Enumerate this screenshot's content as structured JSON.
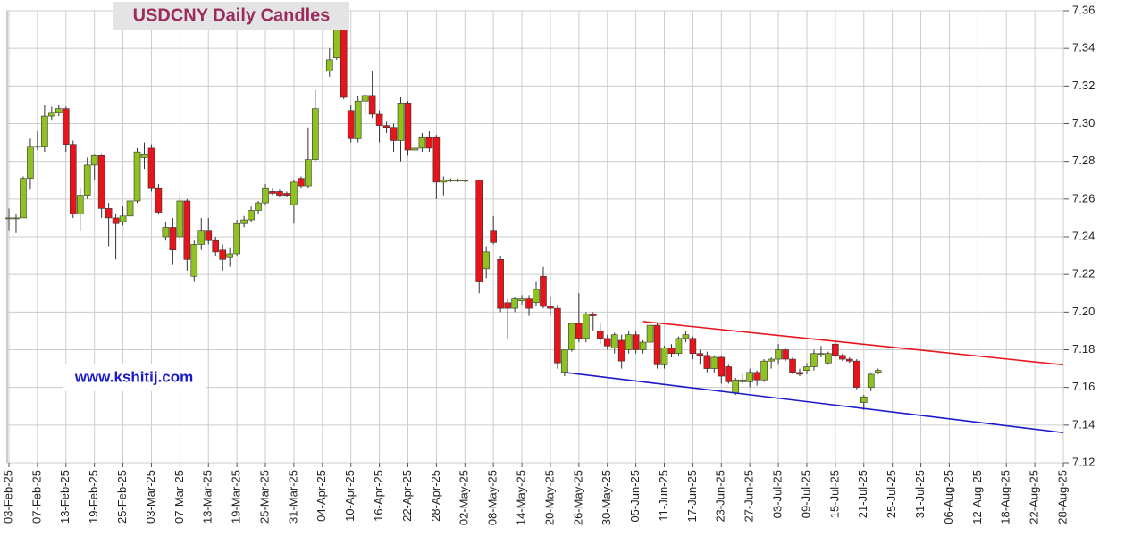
{
  "chart_data": {
    "type": "candlestick",
    "title": "USDCNY Daily Candles",
    "watermark": "www.kshitij.com",
    "up_color": "#8dc21f",
    "down_color": "#e8141b",
    "grid": true,
    "xlim": [
      0,
      148
    ],
    "xticks": [
      {
        "value": 0,
        "label": "03-Feb-25"
      },
      {
        "value": 4,
        "label": "07-Feb-25"
      },
      {
        "value": 8,
        "label": "13-Feb-25"
      },
      {
        "value": 12,
        "label": "19-Feb-25"
      },
      {
        "value": 16,
        "label": "25-Feb-25"
      },
      {
        "value": 20,
        "label": "03-Mar-25"
      },
      {
        "value": 24,
        "label": "07-Mar-25"
      },
      {
        "value": 28,
        "label": "13-Mar-25"
      },
      {
        "value": 32,
        "label": "19-Mar-25"
      },
      {
        "value": 36,
        "label": "25-Mar-25"
      },
      {
        "value": 40,
        "label": "31-Mar-25"
      },
      {
        "value": 44,
        "label": "04-Apr-25"
      },
      {
        "value": 48,
        "label": "10-Apr-25"
      },
      {
        "value": 52,
        "label": "16-Apr-25"
      },
      {
        "value": 56,
        "label": "22-Apr-25"
      },
      {
        "value": 60,
        "label": "28-Apr-25"
      },
      {
        "value": 64,
        "label": "02-May-25"
      },
      {
        "value": 68,
        "label": "08-May-25"
      },
      {
        "value": 72,
        "label": "14-May-25"
      },
      {
        "value": 76,
        "label": "20-May-25"
      },
      {
        "value": 80,
        "label": "26-May-25"
      },
      {
        "value": 84,
        "label": "30-May-25"
      },
      {
        "value": 88,
        "label": "05-Jun-25"
      },
      {
        "value": 92,
        "label": "11-Jun-25"
      },
      {
        "value": 96,
        "label": "17-Jun-25"
      },
      {
        "value": 100,
        "label": "23-Jun-25"
      },
      {
        "value": 104,
        "label": "27-Jun-25"
      },
      {
        "value": 108,
        "label": "03-Jul-25"
      },
      {
        "value": 112,
        "label": "09-Jul-25"
      },
      {
        "value": 116,
        "label": "15-Jul-25"
      },
      {
        "value": 120,
        "label": "21-Jul-25"
      },
      {
        "value": 124,
        "label": "25-Jul-25"
      },
      {
        "value": 128,
        "label": "31-Jul-25"
      },
      {
        "value": 132,
        "label": "06-Aug-25"
      },
      {
        "value": 136,
        "label": "12-Aug-25"
      },
      {
        "value": 140,
        "label": "18-Aug-25"
      },
      {
        "value": 144,
        "label": "22-Aug-25"
      },
      {
        "value": 148,
        "label": "28-Aug-25"
      }
    ],
    "ylim": [
      7.12,
      7.36
    ],
    "yticks": [
      7.12,
      7.14,
      7.16,
      7.18,
      {
        "value": 7.2,
        "label": "7.20"
      },
      7.22,
      7.24,
      7.26,
      7.28,
      {
        "value": 7.3,
        "label": "7.30"
      },
      7.32,
      7.34,
      7.36
    ],
    "x": [
      0,
      1,
      2,
      3,
      4,
      5,
      6,
      7,
      8,
      9,
      10,
      11,
      12,
      13,
      14,
      15,
      16,
      17,
      18,
      19,
      20,
      21,
      22,
      23,
      24,
      25,
      26,
      27,
      28,
      29,
      30,
      31,
      32,
      33,
      34,
      35,
      36,
      37,
      38,
      39,
      40,
      41,
      42,
      43,
      44,
      45,
      46,
      47,
      48,
      49,
      50,
      51,
      52,
      53,
      54,
      55,
      56,
      57,
      58,
      59,
      60,
      61,
      62,
      63,
      64,
      65,
      66,
      67,
      68,
      69,
      70,
      71,
      72,
      73,
      74,
      75,
      76,
      77,
      78,
      79,
      80,
      81,
      82,
      83,
      84,
      85,
      86,
      87,
      88,
      89,
      90,
      91,
      92,
      93,
      94,
      95,
      96,
      97,
      98,
      99,
      100,
      101,
      102,
      103,
      104,
      105,
      106,
      107,
      108,
      109,
      110,
      111,
      112,
      113,
      114,
      115,
      116,
      117,
      118,
      119,
      120,
      121,
      122
    ],
    "open": [
      7.25,
      7.25,
      7.25,
      7.271,
      7.288,
      7.288,
      7.304,
      7.306,
      7.308,
      7.289,
      7.252,
      7.262,
      7.278,
      7.283,
      7.255,
      7.25,
      7.248,
      7.251,
      7.259,
      7.282,
      7.287,
      7.266,
      7.24,
      7.245,
      7.24,
      7.259,
      7.219,
      7.236,
      7.243,
      7.238,
      7.233,
      7.229,
      7.231,
      7.247,
      7.249,
      7.254,
      7.258,
      7.264,
      7.264,
      7.263,
      7.257,
      7.271,
      7.267,
      7.281,
      null,
      7.328,
      7.335,
      7.35,
      7.307,
      7.292,
      7.312,
      7.315,
      7.305,
      7.299,
      7.298,
      7.291,
      7.311,
      7.286,
      7.287,
      7.293,
      7.293,
      7.269,
      7.27,
      7.27,
      7.27,
      null,
      7.27,
      7.223,
      7.243,
      7.228,
      7.205,
      7.202,
      7.206,
      7.207,
      7.205,
      7.219,
      7.203,
      7.202,
      7.168,
      7.18,
      7.194,
      7.186,
      7.199,
      7.19,
      7.186,
      7.181,
      7.185,
      7.18,
      7.188,
      7.18,
      7.184,
      7.193,
      7.172,
      7.181,
      7.178,
      7.186,
      7.186,
      7.178,
      7.177,
      7.17,
      7.176,
      7.171,
      7.157,
      7.163,
      7.163,
      7.168,
      7.164,
      7.174,
      7.175,
      7.18,
      7.175,
      7.168,
      7.169,
      7.171,
      7.178,
      7.173,
      7.183,
      7.177,
      7.175,
      7.174,
      7.152,
      7.16,
      7.168
    ],
    "high": [
      7.255,
      7.252,
      7.272,
      7.292,
      7.296,
      7.31,
      7.309,
      7.31,
      7.309,
      7.291,
      7.266,
      7.282,
      7.284,
      7.284,
      7.258,
      7.252,
      7.256,
      7.262,
      7.287,
      7.29,
      7.289,
      7.268,
      7.248,
      7.25,
      7.262,
      7.26,
      7.238,
      7.25,
      7.25,
      7.24,
      7.236,
      7.234,
      7.249,
      7.251,
      7.256,
      7.259,
      7.268,
      7.266,
      7.265,
      7.264,
      7.27,
      7.272,
      7.298,
      7.318,
      null,
      7.34,
      7.35,
      7.35,
      7.31,
      7.315,
      7.316,
      7.328,
      7.307,
      7.301,
      7.3,
      7.314,
      7.312,
      7.289,
      7.295,
      7.296,
      7.294,
      7.272,
      7.271,
      7.271,
      7.27,
      null,
      7.27,
      7.235,
      7.251,
      7.23,
      7.207,
      7.208,
      7.209,
      7.209,
      7.216,
      7.224,
      7.208,
      7.204,
      7.18,
      7.194,
      7.21,
      7.2,
      7.2,
      7.194,
      7.188,
      7.189,
      7.188,
      7.19,
      7.19,
      7.185,
      7.195,
      7.194,
      7.182,
      7.183,
      7.187,
      7.19,
      7.187,
      7.18,
      7.179,
      7.177,
      7.177,
      7.172,
      7.165,
      7.167,
      7.17,
      7.169,
      7.175,
      7.176,
      7.183,
      7.181,
      7.176,
      7.17,
      7.173,
      7.18,
      7.182,
      7.179,
      7.184,
      7.178,
      7.176,
      7.175,
      7.156,
      7.168,
      7.17
    ],
    "low": [
      7.243,
      7.242,
      7.25,
      7.265,
      7.286,
      7.285,
      7.302,
      7.304,
      7.285,
      7.25,
      7.243,
      7.26,
      7.27,
      7.25,
      7.235,
      7.228,
      7.246,
      7.25,
      7.258,
      7.276,
      7.264,
      7.252,
      7.238,
      7.225,
      7.238,
      7.222,
      7.216,
      7.233,
      7.236,
      7.23,
      7.222,
      7.224,
      7.23,
      7.245,
      7.248,
      7.252,
      7.257,
      7.262,
      7.261,
      7.261,
      7.247,
      7.266,
      7.266,
      7.28,
      null,
      7.325,
      7.334,
      7.313,
      7.29,
      7.29,
      7.305,
      7.303,
      7.29,
      7.295,
      7.285,
      7.28,
      7.283,
      7.284,
      7.285,
      7.285,
      7.26,
      7.262,
      7.269,
      7.269,
      7.269,
      null,
      7.21,
      7.218,
      7.236,
      7.2,
      7.186,
      7.2,
      7.204,
      7.198,
      7.203,
      7.202,
      7.198,
      7.17,
      7.166,
      7.179,
      7.184,
      7.184,
      7.19,
      7.183,
      7.18,
      7.178,
      7.17,
      7.178,
      7.178,
      7.178,
      7.182,
      7.17,
      7.17,
      7.176,
      7.177,
      7.184,
      7.175,
      7.172,
      7.168,
      7.168,
      7.162,
      7.162,
      7.156,
      7.162,
      7.16,
      7.161,
      7.163,
      7.17,
      7.172,
      7.174,
      7.167,
      7.166,
      7.167,
      7.169,
      7.176,
      7.172,
      7.176,
      7.174,
      7.173,
      7.159,
      7.148,
      7.158,
      7.167
    ],
    "close": [
      7.25,
      7.25,
      7.271,
      7.288,
      7.288,
      7.304,
      7.306,
      7.308,
      7.289,
      7.252,
      7.262,
      7.278,
      7.283,
      7.255,
      7.25,
      7.247,
      7.251,
      7.259,
      7.285,
      7.284,
      7.266,
      7.253,
      7.245,
      7.233,
      7.259,
      7.228,
      7.236,
      7.243,
      7.238,
      7.232,
      7.228,
      7.231,
      7.247,
      7.249,
      7.254,
      7.258,
      7.266,
      7.263,
      7.262,
      7.262,
      7.269,
      7.267,
      7.281,
      7.308,
      null,
      7.334,
      7.35,
      7.314,
      7.292,
      7.312,
      7.315,
      7.305,
      7.299,
      7.298,
      7.291,
      7.311,
      7.286,
      7.287,
      7.293,
      7.287,
      7.269,
      7.27,
      7.27,
      7.27,
      7.27,
      null,
      7.216,
      7.232,
      7.237,
      7.202,
      7.202,
      7.207,
      7.207,
      7.202,
      7.212,
      7.203,
      7.202,
      7.173,
      7.18,
      7.194,
      7.186,
      7.199,
      7.198,
      7.186,
      7.182,
      7.188,
      7.174,
      7.188,
      7.18,
      7.184,
      7.193,
      7.172,
      7.181,
      7.178,
      7.186,
      7.188,
      7.178,
      7.177,
      7.17,
      7.176,
      7.166,
      7.163,
      7.164,
      7.164,
      7.168,
      7.164,
      7.174,
      7.175,
      7.18,
      7.175,
      7.168,
      7.167,
      7.171,
      7.178,
      7.178,
      7.178,
      7.177,
      7.175,
      7.174,
      7.16,
      7.155,
      7.167,
      7.169
    ],
    "trendlines": [
      {
        "color": "#e8141b",
        "x": [
          89,
          148
        ],
        "y": [
          7.195,
          7.172
        ]
      },
      {
        "color": "#1a1acc",
        "x": [
          78,
          148
        ],
        "y": [
          7.168,
          7.136
        ]
      }
    ]
  }
}
